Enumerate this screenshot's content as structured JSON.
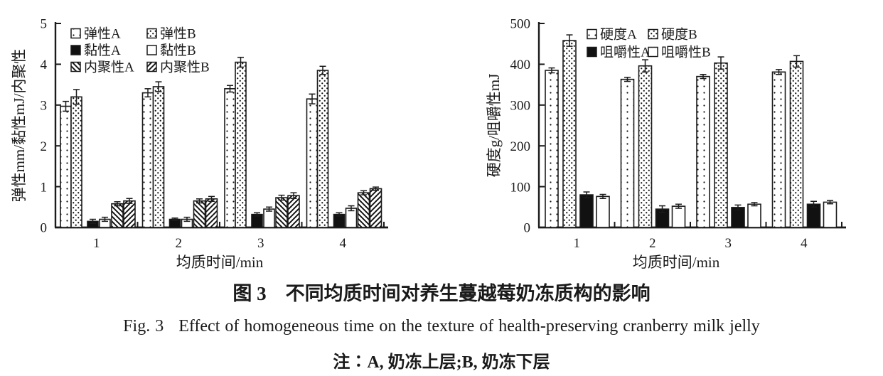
{
  "figure": {
    "captions": {
      "chinese": "图 3　不同均质时间对养生蔓越莓奶冻质构的影响",
      "english": "Fig. 3   Effect of homogeneous time on the texture of health-preserving cranberry milk jelly",
      "note": "注∶A, 奶冻上层;B, 奶冻下层"
    }
  },
  "chart_data": [
    {
      "type": "bar",
      "title": "",
      "xlabel": "均质时间/min",
      "ylabel": "弹性mm/黏性mJ/内聚性",
      "categories": [
        "1",
        "2",
        "3",
        "4"
      ],
      "ylim": [
        0,
        5
      ],
      "ytick_step": 1,
      "grid": false,
      "legend_position": "top-inside",
      "series": [
        {
          "name": "弹性A",
          "pattern": "sparse-dots",
          "values": [
            2.97,
            3.3,
            3.4,
            3.15
          ],
          "errors": [
            0.12,
            0.1,
            0.08,
            0.12
          ]
        },
        {
          "name": "弹性B",
          "pattern": "dense-dots",
          "values": [
            3.2,
            3.45,
            4.05,
            3.85
          ],
          "errors": [
            0.18,
            0.12,
            0.12,
            0.1
          ]
        },
        {
          "name": "黏性A",
          "pattern": "black",
          "values": [
            0.15,
            0.2,
            0.32,
            0.32
          ],
          "errors": [
            0.05,
            0.03,
            0.04,
            0.04
          ]
        },
        {
          "name": "黏性B",
          "pattern": "white",
          "values": [
            0.2,
            0.2,
            0.45,
            0.47
          ],
          "errors": [
            0.05,
            0.05,
            0.05,
            0.06
          ]
        },
        {
          "name": "内聚性A",
          "pattern": "hatch-back",
          "values": [
            0.58,
            0.65,
            0.73,
            0.85
          ],
          "errors": [
            0.05,
            0.05,
            0.06,
            0.05
          ]
        },
        {
          "name": "内聚性B",
          "pattern": "hatch-fwd",
          "values": [
            0.65,
            0.7,
            0.78,
            0.95
          ],
          "errors": [
            0.06,
            0.06,
            0.07,
            0.04
          ]
        }
      ]
    },
    {
      "type": "bar",
      "title": "",
      "xlabel": "均质时间/min",
      "ylabel": "硬度g/咀嚼性mJ",
      "categories": [
        "1",
        "2",
        "3",
        "4"
      ],
      "ylim": [
        0,
        500
      ],
      "ytick_step": 100,
      "grid": false,
      "legend_position": "top-inside",
      "series": [
        {
          "name": "硬度A",
          "pattern": "sparse-dots",
          "values": [
            385,
            363,
            370,
            381
          ],
          "errors": [
            6,
            5,
            5,
            6
          ]
        },
        {
          "name": "硬度B",
          "pattern": "dense-dots",
          "values": [
            458,
            396,
            403,
            407
          ],
          "errors": [
            14,
            15,
            15,
            14
          ]
        },
        {
          "name": "咀嚼性A",
          "pattern": "black",
          "values": [
            80,
            45,
            49,
            57
          ],
          "errors": [
            7,
            8,
            6,
            7
          ]
        },
        {
          "name": "咀嚼性B",
          "pattern": "white",
          "values": [
            76,
            52,
            57,
            62
          ],
          "errors": [
            5,
            5,
            4,
            4
          ]
        }
      ]
    }
  ]
}
